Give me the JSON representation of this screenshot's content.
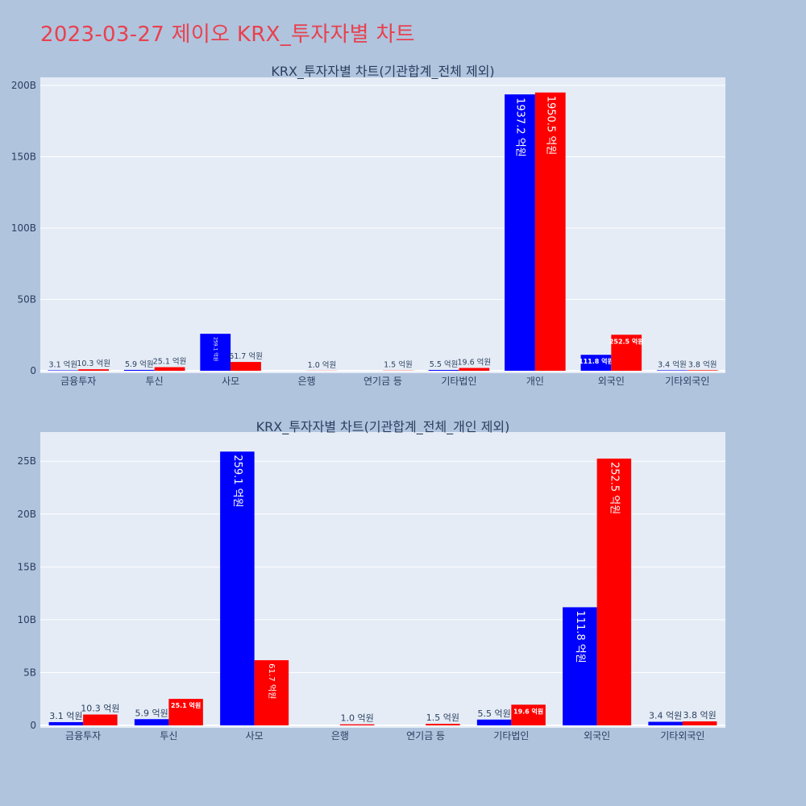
{
  "page": {
    "title": "2023-03-27 제이오 KRX_투자자별 차트"
  },
  "colors": {
    "buy": "#0000ff",
    "sell": "#ff0000",
    "plot_bg": "#e5ecf6",
    "page_bg": "#b0c4de",
    "title": "#e8414e",
    "text": "#2a3f5f"
  },
  "chart_data": [
    {
      "type": "bar",
      "title": "KRX_투자자별 차트(기관합계_전체 제외)",
      "categories": [
        "금융투자",
        "투신",
        "사모",
        "은행",
        "연기금 등",
        "기타법인",
        "개인",
        "외국인",
        "기타외국인"
      ],
      "series": [
        {
          "color": "#0000ff",
          "values": [
            0.31,
            0.59,
            25.91,
            0,
            0,
            0.55,
            193.72,
            11.18,
            0.34
          ],
          "labels": [
            "3.1 억원",
            "5.9 억원",
            "259.1 억원",
            "",
            "",
            "5.5 억원",
            "1937.2 억원",
            "111.8 억원",
            "3.4 억원"
          ]
        },
        {
          "color": "#ff0000",
          "values": [
            1.03,
            2.51,
            6.17,
            0.1,
            0.15,
            1.96,
            195.05,
            25.25,
            0.38
          ],
          "labels": [
            "10.3 억원",
            "25.1 억원",
            "61.7 억원",
            "1.0 억원",
            "1.5 억원",
            "19.6 억원",
            "1950.5 억원",
            "252.5 억원",
            "3.8 억원"
          ]
        }
      ],
      "ylim": [
        0,
        200
      ],
      "yticks": [
        0,
        50,
        100,
        150,
        200
      ],
      "ytick_labels": [
        "0",
        "50B",
        "100B",
        "150B",
        "200B"
      ],
      "grid": true,
      "legend": false
    },
    {
      "type": "bar",
      "title": "KRX_투자자별 차트(기관합계_전체_개인 제외)",
      "categories": [
        "금융투자",
        "투신",
        "사모",
        "은행",
        "연기금 등",
        "기타법인",
        "외국인",
        "기타외국인"
      ],
      "series": [
        {
          "color": "#0000ff",
          "values": [
            0.31,
            0.59,
            25.91,
            0,
            0,
            0.55,
            11.18,
            0.34
          ],
          "labels": [
            "3.1 억원",
            "5.9 억원",
            "259.1 억원",
            "",
            "",
            "5.5 억원",
            "111.8 억원",
            "3.4 억원"
          ]
        },
        {
          "color": "#ff0000",
          "values": [
            1.03,
            2.51,
            6.17,
            0.1,
            0.15,
            1.96,
            25.25,
            0.38
          ],
          "labels": [
            "10.3 억원",
            "25.1 억원",
            "61.7 억원",
            "1.0 억원",
            "1.5 억원",
            "19.6 억원",
            "252.5 억원",
            "3.8 억원"
          ]
        }
      ],
      "ylim": [
        0,
        27
      ],
      "yticks": [
        0,
        5,
        10,
        15,
        20,
        25
      ],
      "ytick_labels": [
        "0",
        "5B",
        "10B",
        "15B",
        "20B",
        "25B"
      ],
      "grid": true,
      "legend": false
    }
  ]
}
